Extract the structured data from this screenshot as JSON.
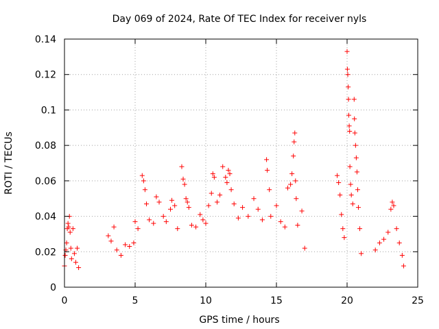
{
  "chart_data": {
    "type": "scatter",
    "title": "Day 069 of 2024, Rate Of TEC Index for receiver nyls",
    "xlabel": "GPS time / hours",
    "ylabel": "ROTI / TECUs",
    "xlim": [
      0,
      25
    ],
    "ylim": [
      0,
      0.14
    ],
    "xticks": [
      "0",
      "5",
      "10",
      "15",
      "20",
      "25"
    ],
    "yticks": [
      "0",
      "0.02",
      "0.04",
      "0.06",
      "0.08",
      "0.1",
      "0.12",
      "0.14"
    ],
    "grid": true,
    "marker": "+",
    "color": "#ff0000",
    "series": [
      {
        "values": [
          [
            0.0,
            0.012
          ],
          [
            0.05,
            0.018
          ],
          [
            0.1,
            0.021
          ],
          [
            0.15,
            0.025
          ],
          [
            0.2,
            0.033
          ],
          [
            0.25,
            0.036
          ],
          [
            0.3,
            0.034
          ],
          [
            0.35,
            0.04
          ],
          [
            0.4,
            0.031
          ],
          [
            0.45,
            0.022
          ],
          [
            0.5,
            0.016
          ],
          [
            0.6,
            0.033
          ],
          [
            0.7,
            0.019
          ],
          [
            0.8,
            0.014
          ],
          [
            0.9,
            0.022
          ],
          [
            1.0,
            0.011
          ],
          [
            3.1,
            0.029
          ],
          [
            3.3,
            0.026
          ],
          [
            3.5,
            0.034
          ],
          [
            3.7,
            0.021
          ],
          [
            4.0,
            0.018
          ],
          [
            4.3,
            0.024
          ],
          [
            4.6,
            0.023
          ],
          [
            4.9,
            0.025
          ],
          [
            5.0,
            0.037
          ],
          [
            5.2,
            0.033
          ],
          [
            5.5,
            0.063
          ],
          [
            5.6,
            0.06
          ],
          [
            5.7,
            0.055
          ],
          [
            5.8,
            0.047
          ],
          [
            6.0,
            0.038
          ],
          [
            6.3,
            0.036
          ],
          [
            6.5,
            0.051
          ],
          [
            6.7,
            0.048
          ],
          [
            7.0,
            0.04
          ],
          [
            7.2,
            0.037
          ],
          [
            7.5,
            0.044
          ],
          [
            7.6,
            0.049
          ],
          [
            7.8,
            0.046
          ],
          [
            8.0,
            0.033
          ],
          [
            8.3,
            0.068
          ],
          [
            8.4,
            0.061
          ],
          [
            8.5,
            0.058
          ],
          [
            8.6,
            0.05
          ],
          [
            8.7,
            0.048
          ],
          [
            8.8,
            0.045
          ],
          [
            9.0,
            0.035
          ],
          [
            9.3,
            0.034
          ],
          [
            9.6,
            0.041
          ],
          [
            9.8,
            0.038
          ],
          [
            10.0,
            0.036
          ],
          [
            10.2,
            0.046
          ],
          [
            10.4,
            0.053
          ],
          [
            10.5,
            0.064
          ],
          [
            10.6,
            0.062
          ],
          [
            10.8,
            0.048
          ],
          [
            11.0,
            0.052
          ],
          [
            11.2,
            0.068
          ],
          [
            11.4,
            0.062
          ],
          [
            11.5,
            0.059
          ],
          [
            11.6,
            0.066
          ],
          [
            11.7,
            0.064
          ],
          [
            11.8,
            0.055
          ],
          [
            12.0,
            0.047
          ],
          [
            12.3,
            0.039
          ],
          [
            12.6,
            0.045
          ],
          [
            13.0,
            0.04
          ],
          [
            13.4,
            0.05
          ],
          [
            13.7,
            0.044
          ],
          [
            14.0,
            0.038
          ],
          [
            14.3,
            0.072
          ],
          [
            14.35,
            0.066
          ],
          [
            14.5,
            0.055
          ],
          [
            14.6,
            0.04
          ],
          [
            15.0,
            0.046
          ],
          [
            15.3,
            0.037
          ],
          [
            15.6,
            0.034
          ],
          [
            15.8,
            0.056
          ],
          [
            16.0,
            0.058
          ],
          [
            16.1,
            0.064
          ],
          [
            16.2,
            0.074
          ],
          [
            16.25,
            0.082
          ],
          [
            16.3,
            0.087
          ],
          [
            16.35,
            0.06
          ],
          [
            16.4,
            0.05
          ],
          [
            16.5,
            0.035
          ],
          [
            16.8,
            0.043
          ],
          [
            17.0,
            0.022
          ],
          [
            19.3,
            0.063
          ],
          [
            19.4,
            0.059
          ],
          [
            19.5,
            0.052
          ],
          [
            19.6,
            0.041
          ],
          [
            19.7,
            0.033
          ],
          [
            19.8,
            0.028
          ],
          [
            20.0,
            0.133
          ],
          [
            20.02,
            0.123
          ],
          [
            20.05,
            0.12
          ],
          [
            20.08,
            0.113
          ],
          [
            20.1,
            0.106
          ],
          [
            20.12,
            0.097
          ],
          [
            20.15,
            0.091
          ],
          [
            20.18,
            0.088
          ],
          [
            20.2,
            0.068
          ],
          [
            20.25,
            0.058
          ],
          [
            20.3,
            0.052
          ],
          [
            20.4,
            0.047
          ],
          [
            20.5,
            0.106
          ],
          [
            20.52,
            0.095
          ],
          [
            20.55,
            0.087
          ],
          [
            20.6,
            0.08
          ],
          [
            20.65,
            0.073
          ],
          [
            20.7,
            0.065
          ],
          [
            20.75,
            0.055
          ],
          [
            20.8,
            0.045
          ],
          [
            20.9,
            0.033
          ],
          [
            21.0,
            0.019
          ],
          [
            22.0,
            0.021
          ],
          [
            22.3,
            0.025
          ],
          [
            22.6,
            0.027
          ],
          [
            22.9,
            0.031
          ],
          [
            23.1,
            0.044
          ],
          [
            23.2,
            0.048
          ],
          [
            23.3,
            0.046
          ],
          [
            23.5,
            0.033
          ],
          [
            23.7,
            0.025
          ],
          [
            23.9,
            0.018
          ],
          [
            24.0,
            0.012
          ]
        ]
      }
    ]
  }
}
